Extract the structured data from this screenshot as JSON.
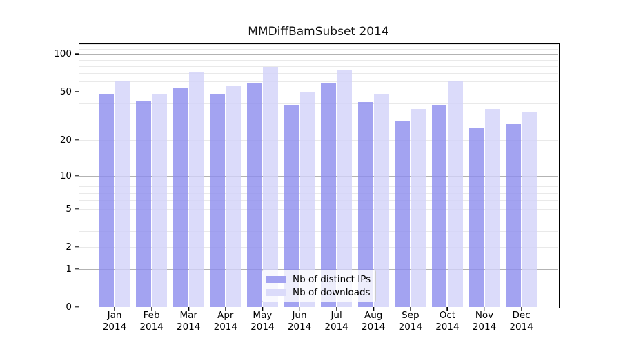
{
  "title": "MMDiffBamSubset 2014",
  "chart_data": {
    "type": "bar",
    "title": "MMDiffBamSubset 2014",
    "categories": [
      "Jan",
      "Feb",
      "Mar",
      "Apr",
      "May",
      "Jun",
      "Jul",
      "Aug",
      "Sep",
      "Oct",
      "Nov",
      "Dec"
    ],
    "category_year": "2014",
    "series": [
      {
        "name": "Nb of distinct IPs",
        "color": "#a3a3f1",
        "fill": "rgba(140,140,238,0.8)",
        "values": [
          48,
          42,
          54,
          48,
          58,
          39,
          59,
          41,
          29,
          39,
          25,
          27
        ]
      },
      {
        "name": "Nb of downloads",
        "color": "#dbdbfa",
        "fill": "rgba(210,210,249,0.8)",
        "values": [
          61,
          48,
          71,
          56,
          79,
          49,
          75,
          48,
          36,
          61,
          36,
          34
        ]
      }
    ],
    "xlabel": "",
    "ylabel": "",
    "y_scale": "log1p",
    "ylim": [
      0,
      121.5
    ],
    "y_tick_values": [
      0,
      1,
      2,
      5,
      10,
      20,
      50,
      100
    ],
    "y_tick_labels": [
      "0",
      "1",
      "2",
      "5",
      "10",
      "20",
      "50",
      "100"
    ],
    "y_major_grid": [
      1,
      10,
      100
    ],
    "y_minor_grid": [
      2,
      3,
      4,
      5,
      6,
      7,
      8,
      9,
      20,
      30,
      40,
      50,
      60,
      70,
      80,
      90,
      110,
      120
    ],
    "grid": true,
    "legend_position": "lower center"
  },
  "colors": {
    "bar_distinct_ips": "#a3a3f1",
    "bar_downloads": "#dbdbfa",
    "grid_minor": "#e9e9e9",
    "grid_major": "#b3b3b3",
    "axis": "#000000",
    "legend_border": "#cccccc"
  }
}
